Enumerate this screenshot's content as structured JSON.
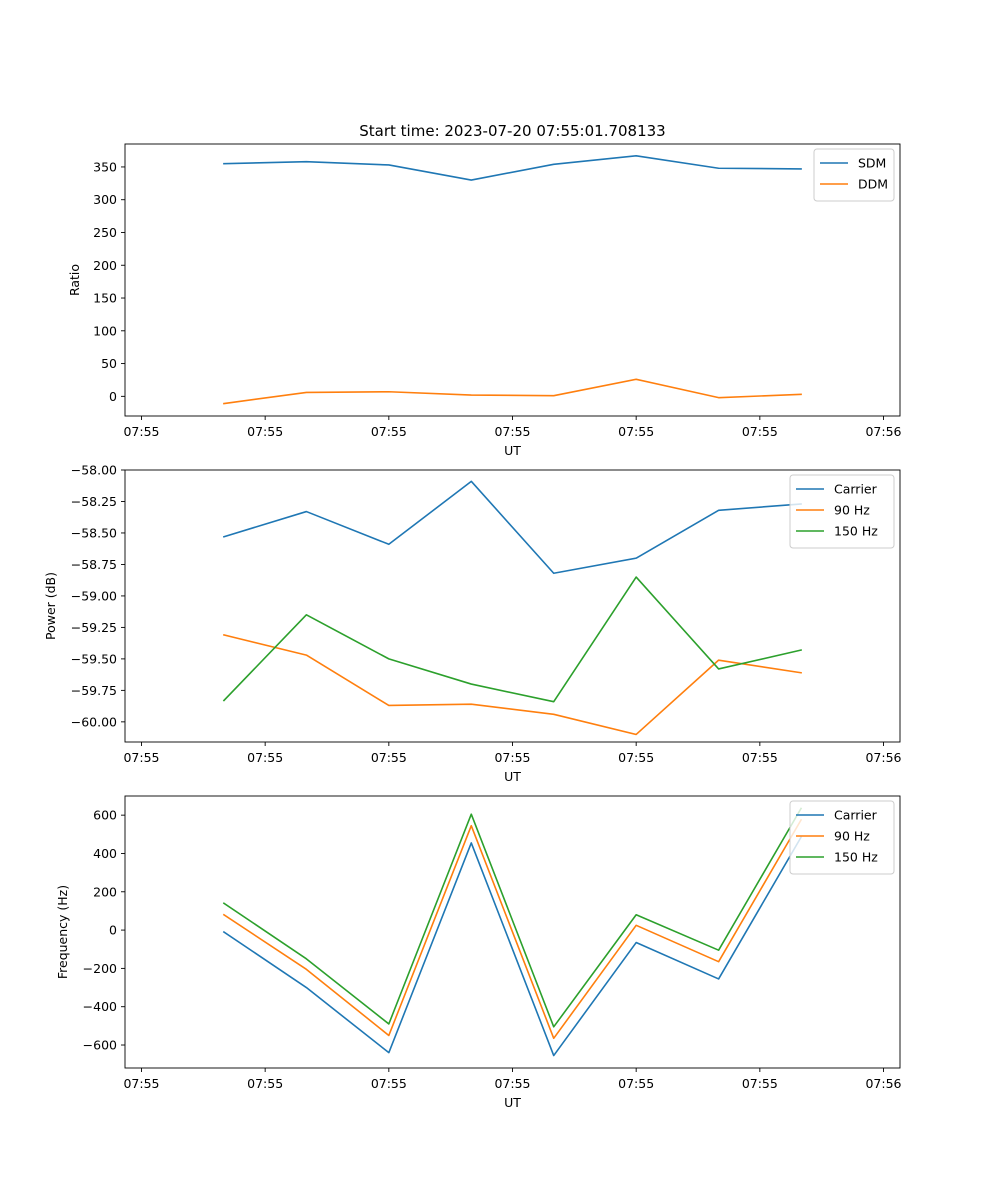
{
  "figure_title": "Start time: 2023-07-20 07:55:01.708133",
  "chart_data": [
    {
      "type": "line",
      "title": "Start time: 2023-07-20 07:55:01.708133",
      "xlabel": "UT",
      "ylabel": "Ratio",
      "x": [
        1,
        2,
        3,
        4,
        5,
        6,
        7,
        8
      ],
      "xlim": [
        -0.2,
        9.2
      ],
      "xticks": [
        0,
        1.5,
        3,
        4.5,
        6,
        7.5,
        9
      ],
      "xtick_labels": [
        "07:55",
        "07:55",
        "07:55",
        "07:55",
        "07:55",
        "07:55",
        "07:56"
      ],
      "ylim": [
        -30,
        385
      ],
      "yticks": [
        0,
        50,
        100,
        150,
        200,
        250,
        300,
        350
      ],
      "ytick_labels": [
        "0",
        "50",
        "100",
        "150",
        "200",
        "250",
        "300",
        "350"
      ],
      "legend_position": "top-right",
      "series": [
        {
          "name": "SDM",
          "color": "#1f77b4",
          "values": [
            355,
            358,
            353,
            330,
            354,
            367,
            348,
            347
          ]
        },
        {
          "name": "DDM",
          "color": "#ff7f0e",
          "values": [
            -11,
            6,
            7,
            2,
            1,
            26,
            -2,
            3
          ]
        }
      ]
    },
    {
      "type": "line",
      "xlabel": "UT",
      "ylabel": "Power (dB)",
      "x": [
        1,
        2,
        3,
        4,
        5,
        6,
        7,
        8
      ],
      "xlim": [
        -0.2,
        9.2
      ],
      "xticks": [
        0,
        1.5,
        3,
        4.5,
        6,
        7.5,
        9
      ],
      "xtick_labels": [
        "07:55",
        "07:55",
        "07:55",
        "07:55",
        "07:55",
        "07:55",
        "07:56"
      ],
      "ylim": [
        -60.16,
        -58.0
      ],
      "yticks": [
        -60.0,
        -59.75,
        -59.5,
        -59.25,
        -59.0,
        -58.75,
        -58.5,
        -58.25,
        -58.0
      ],
      "ytick_labels": [
        "−60.00",
        "−59.75",
        "−59.50",
        "−59.25",
        "−59.00",
        "−58.75",
        "−58.50",
        "−58.25",
        "−58.00"
      ],
      "legend_position": "top-right",
      "series": [
        {
          "name": "Carrier",
          "color": "#1f77b4",
          "values": [
            -58.53,
            -58.33,
            -58.59,
            -58.09,
            -58.82,
            -58.7,
            -58.32,
            -58.27
          ]
        },
        {
          "name": "90 Hz",
          "color": "#ff7f0e",
          "values": [
            -59.31,
            -59.47,
            -59.87,
            -59.86,
            -59.94,
            -60.1,
            -59.51,
            -59.61
          ]
        },
        {
          "name": "150 Hz",
          "color": "#2ca02c",
          "values": [
            -59.83,
            -59.15,
            -59.5,
            -59.7,
            -59.84,
            -58.85,
            -59.58,
            -59.43
          ]
        }
      ]
    },
    {
      "type": "line",
      "xlabel": "UT",
      "ylabel": "Frequency (Hz)",
      "x": [
        1,
        2,
        3,
        4,
        5,
        6,
        7,
        8
      ],
      "xlim": [
        -0.2,
        9.2
      ],
      "xticks": [
        0,
        1.5,
        3,
        4.5,
        6,
        7.5,
        9
      ],
      "xtick_labels": [
        "07:55",
        "07:55",
        "07:55",
        "07:55",
        "07:55",
        "07:55",
        "07:56"
      ],
      "ylim": [
        -720,
        700
      ],
      "yticks": [
        -600,
        -400,
        -200,
        0,
        200,
        400,
        600
      ],
      "ytick_labels": [
        "−600",
        "−400",
        "−200",
        "0",
        "200",
        "400",
        "600"
      ],
      "legend_position": "top-right",
      "series": [
        {
          "name": "Carrier",
          "color": "#1f77b4",
          "values": [
            -10,
            -300,
            -640,
            455,
            -655,
            -65,
            -255,
            485
          ]
        },
        {
          "name": "90 Hz",
          "color": "#ff7f0e",
          "values": [
            80,
            -205,
            -550,
            545,
            -565,
            25,
            -165,
            575
          ]
        },
        {
          "name": "150 Hz",
          "color": "#2ca02c",
          "values": [
            140,
            -150,
            -490,
            605,
            -505,
            80,
            -105,
            635
          ]
        }
      ]
    }
  ]
}
